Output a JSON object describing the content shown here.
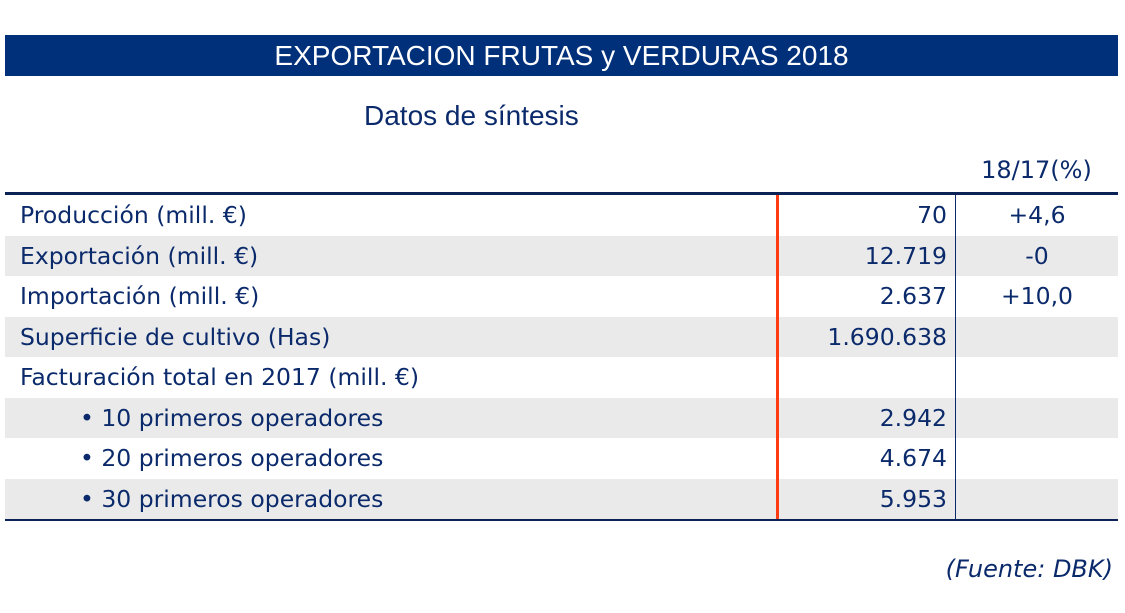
{
  "title": "EXPORTACION FRUTAS y VERDURAS 2018",
  "subtitle": "Datos de síntesis",
  "column_header": "18/17(%)",
  "rows": [
    {
      "label": "Producción (mill. €)",
      "value": "70",
      "change": "+4,6"
    },
    {
      "label": "Exportación (mill. €)",
      "value": "12.719",
      "change": "-0"
    },
    {
      "label": "Importación (mill. €)",
      "value": "2.637",
      "change": "+10,0"
    },
    {
      "label": "Superficie de cultivo (Has)",
      "value": "1.690.638",
      "change": ""
    },
    {
      "label": "Facturación total en 2017 (mill. €)",
      "value": "",
      "change": ""
    },
    {
      "label": "• 10 primeros operadores",
      "value": "2.942",
      "change": ""
    },
    {
      "label": "• 20 primeros operadores",
      "value": "4.674",
      "change": ""
    },
    {
      "label": "• 30 primeros operadores",
      "value": "5.953",
      "change": ""
    }
  ],
  "source": "(Fuente: DBK)"
}
